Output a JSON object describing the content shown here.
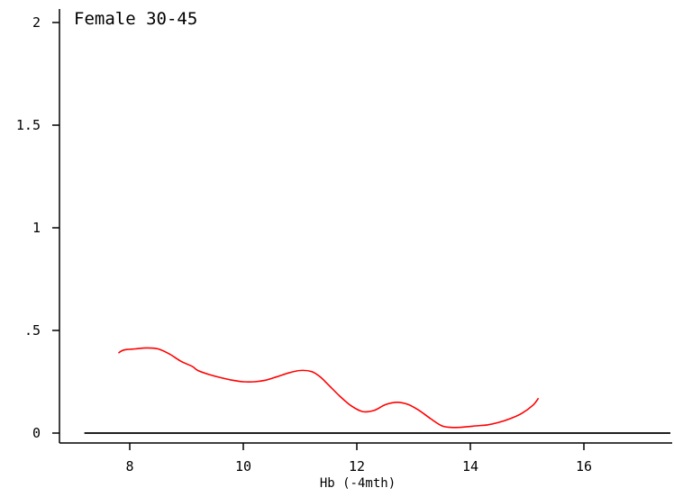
{
  "chart_data": {
    "type": "line",
    "title": "Female 30-45",
    "xlabel": "Hb (-4mth)",
    "ylabel": "",
    "xlim": [
      7.0,
      17.5
    ],
    "ylim": [
      0,
      2
    ],
    "x_ticks": [
      8,
      10,
      12,
      14,
      16
    ],
    "x_tick_labels": [
      "8",
      "10",
      "12",
      "14",
      "16"
    ],
    "y_ticks": [
      0,
      0.5,
      1,
      1.5,
      2
    ],
    "y_tick_labels": [
      "0",
      ".5",
      "1",
      "1.5",
      "2"
    ],
    "grid": false,
    "reference_line": {
      "y": 0,
      "color": "#000000"
    },
    "series": [
      {
        "color": "#ff0000",
        "x": [
          7.8,
          7.9,
          8.1,
          8.3,
          8.5,
          8.7,
          8.9,
          9.1,
          9.2,
          9.4,
          9.6,
          9.8,
          10.0,
          10.2,
          10.4,
          10.6,
          10.8,
          11.0,
          11.2,
          11.35,
          11.5,
          11.7,
          11.9,
          12.1,
          12.3,
          12.5,
          12.7,
          12.9,
          13.1,
          13.3,
          13.5,
          13.7,
          13.9,
          14.1,
          14.3,
          14.5,
          14.7,
          14.9,
          15.1,
          15.2
        ],
        "y": [
          0.39,
          0.405,
          0.41,
          0.415,
          0.41,
          0.385,
          0.35,
          0.325,
          0.305,
          0.285,
          0.27,
          0.258,
          0.25,
          0.25,
          0.258,
          0.275,
          0.293,
          0.305,
          0.3,
          0.275,
          0.235,
          0.18,
          0.133,
          0.105,
          0.11,
          0.138,
          0.15,
          0.14,
          0.11,
          0.07,
          0.035,
          0.027,
          0.03,
          0.035,
          0.04,
          0.052,
          0.07,
          0.095,
          0.135,
          0.17
        ]
      }
    ]
  }
}
